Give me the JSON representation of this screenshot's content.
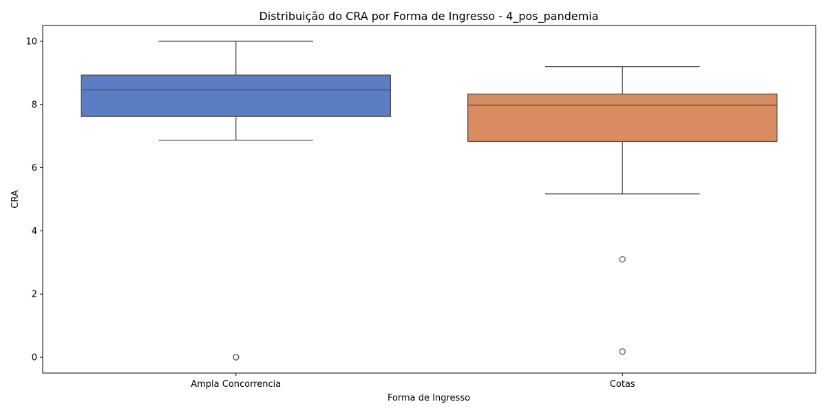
{
  "chart_data": {
    "type": "box",
    "title": "Distribuição do CRA por Forma de Ingresso - 4_pos_pandemia",
    "xlabel": "Forma de Ingresso",
    "ylabel": "CRA",
    "ylim": [
      -0.5,
      10.5
    ],
    "yticks": [
      0,
      2,
      4,
      6,
      8,
      10
    ],
    "grid": false,
    "legend": "none",
    "categories": [
      "Ampla Concorrencia",
      "Cotas"
    ],
    "series": [
      {
        "category": "Ampla Concorrencia",
        "color": "#5a7dc3",
        "whisker_low": 6.87,
        "q1": 7.62,
        "median": 8.46,
        "q3": 8.93,
        "whisker_high": 10.0,
        "outliers": [
          0.0,
          0.0
        ]
      },
      {
        "category": "Cotas",
        "color": "#da8c61",
        "whisker_low": 5.17,
        "q1": 6.83,
        "median": 7.98,
        "q3": 8.33,
        "whisker_high": 9.2,
        "outliers": [
          3.1,
          0.18
        ]
      }
    ]
  }
}
